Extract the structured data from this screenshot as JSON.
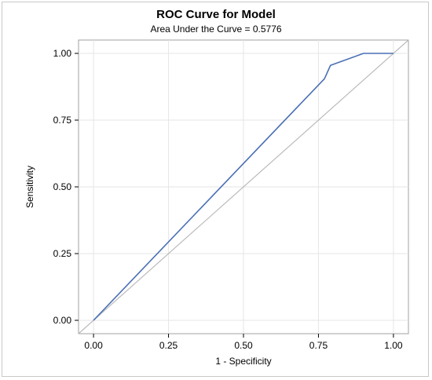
{
  "chart_data": {
    "type": "line",
    "title": "ROC Curve for Model",
    "subtitle": "Area Under the Curve = 0.5776",
    "xlabel": "1 - Specificity",
    "ylabel": "Sensitivity",
    "xlim": [
      -0.05,
      1.05
    ],
    "ylim": [
      -0.05,
      1.05
    ],
    "x_ticks": [
      0.0,
      0.25,
      0.5,
      0.75,
      1.0
    ],
    "x_tick_labels": [
      "0.00",
      "0.25",
      "0.50",
      "0.75",
      "1.00"
    ],
    "y_ticks": [
      0.0,
      0.25,
      0.5,
      0.75,
      1.0
    ],
    "y_tick_labels": [
      "0.00",
      "0.25",
      "0.50",
      "0.75",
      "1.00"
    ],
    "grid": true,
    "series": [
      {
        "color": "#4a6fb5",
        "x": [
          0.0,
          0.77,
          0.79,
          0.9,
          1.0
        ],
        "y": [
          0.0,
          0.905,
          0.955,
          1.0,
          1.0
        ]
      },
      {
        "color": "#bbbbbb",
        "x": [
          -0.05,
          1.05
        ],
        "y": [
          -0.05,
          1.05
        ]
      }
    ]
  }
}
